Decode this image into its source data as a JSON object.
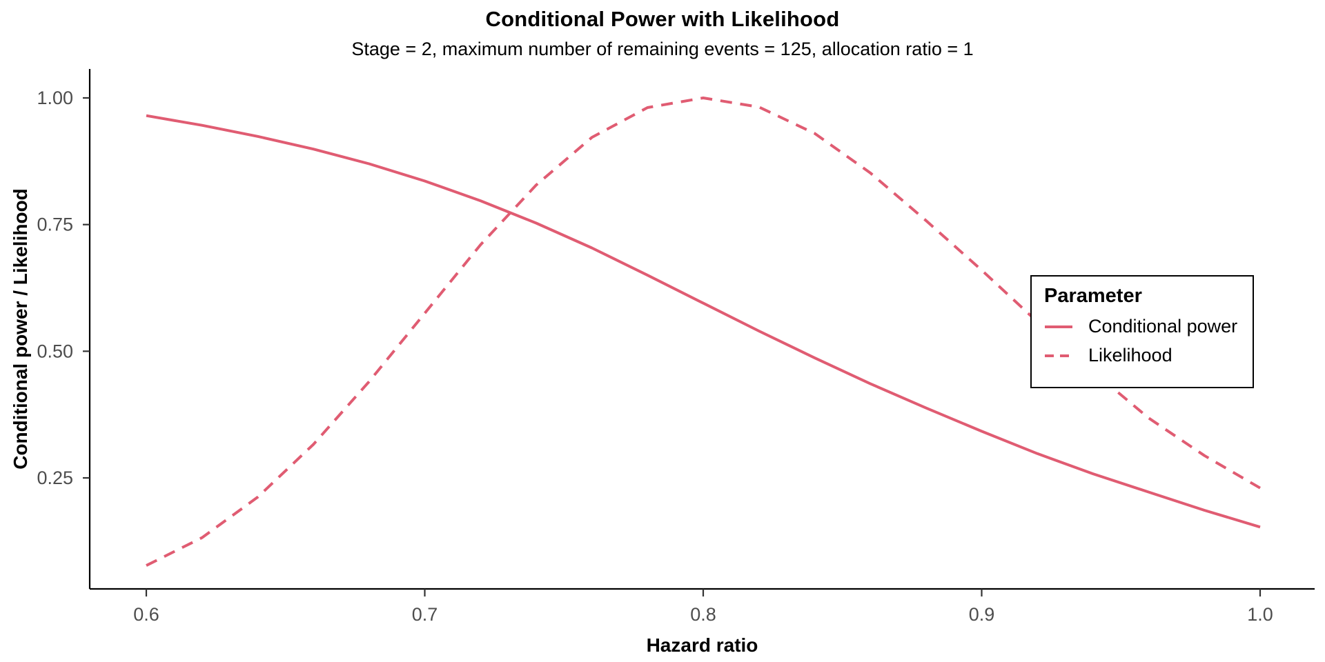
{
  "header": {
    "title": "Conditional Power with Likelihood",
    "subtitle": "Stage = 2, maximum number of remaining events = 125, allocation ratio = 1"
  },
  "colors": {
    "line": "#E05C72",
    "axis": "#000000",
    "tick_mark": "#333333",
    "tick_text": "#4d4d4d",
    "legend_border": "#000000",
    "background": "#ffffff"
  },
  "chart_data": {
    "type": "line",
    "title": "Conditional Power with Likelihood",
    "subtitle": "Stage = 2, maximum number of remaining events = 125, allocation ratio = 1",
    "xlabel": "Hazard ratio",
    "ylabel": "Conditional power / Likelihood",
    "xlim": [
      0.5797,
      1.0196
    ],
    "ylim": [
      0.031,
      1.057
    ],
    "grid": false,
    "x_ticks": [
      {
        "value": 0.6,
        "label": "0.6"
      },
      {
        "value": 0.7,
        "label": "0.7"
      },
      {
        "value": 0.8,
        "label": "0.8"
      },
      {
        "value": 0.9,
        "label": "0.9"
      },
      {
        "value": 1.0,
        "label": "1.0"
      }
    ],
    "y_ticks": [
      {
        "value": 0.25,
        "label": "0.25"
      },
      {
        "value": 0.5,
        "label": "0.50"
      },
      {
        "value": 0.75,
        "label": "0.75"
      },
      {
        "value": 1.0,
        "label": "1.00"
      }
    ],
    "x": [
      0.6,
      0.62,
      0.64,
      0.66,
      0.68,
      0.7,
      0.72,
      0.74,
      0.76,
      0.78,
      0.8,
      0.82,
      0.84,
      0.86,
      0.88,
      0.9,
      0.92,
      0.94,
      0.96,
      0.98,
      1.0
    ],
    "series": [
      {
        "name": "Conditional power",
        "style": "solid",
        "color": "#E05C72",
        "values": [
          0.965,
          0.946,
          0.924,
          0.899,
          0.87,
          0.836,
          0.797,
          0.753,
          0.704,
          0.65,
          0.595,
          0.54,
          0.487,
          0.436,
          0.388,
          0.342,
          0.298,
          0.258,
          0.222,
          0.186,
          0.153
        ]
      },
      {
        "name": "Likelihood",
        "style": "dashed",
        "color": "#E05C72",
        "values": [
          0.077,
          0.132,
          0.212,
          0.316,
          0.44,
          0.575,
          0.71,
          0.828,
          0.922,
          0.981,
          1.0,
          0.982,
          0.93,
          0.852,
          0.758,
          0.66,
          0.558,
          0.46,
          0.368,
          0.294,
          0.23
        ]
      }
    ],
    "legend": {
      "title": "Parameter",
      "position": "right-inside"
    }
  }
}
